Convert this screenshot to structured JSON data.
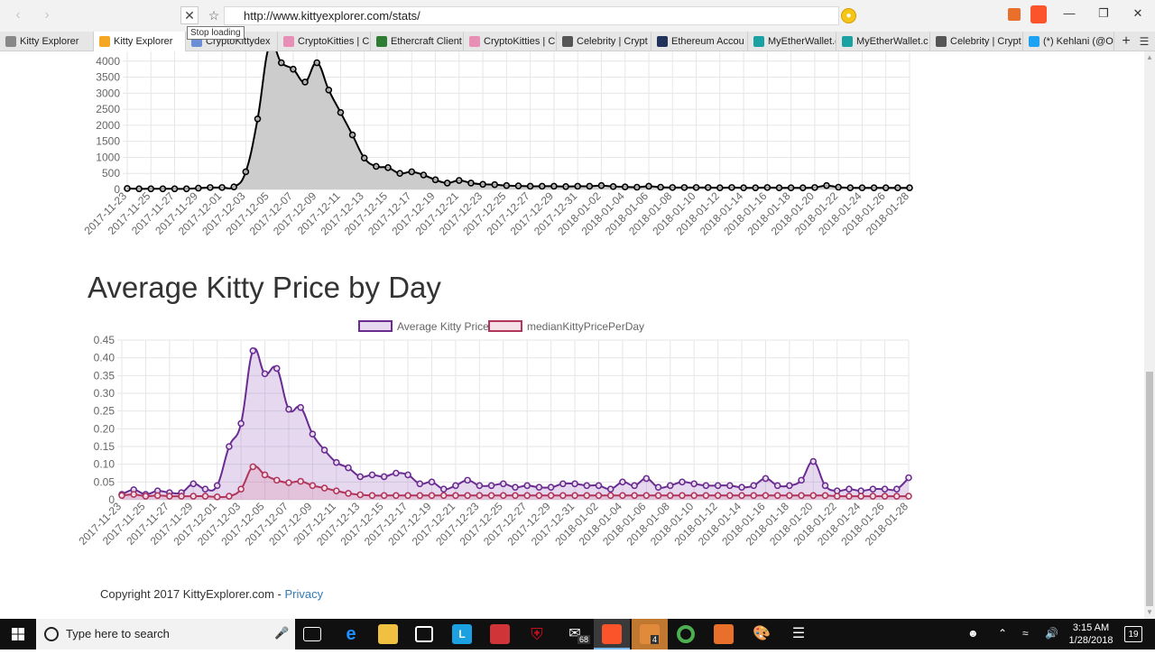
{
  "browser": {
    "url": "http://www.kittyexplorer.com/stats/",
    "tooltip": "Stop loading",
    "tabs": [
      {
        "label": "Kitty Explorer",
        "icon": "page-icon",
        "color": "#888888"
      },
      {
        "label": "Kitty Explorer",
        "icon": "loading-icon",
        "color": "#f5a623",
        "active": true
      },
      {
        "label": "CryptoKittydex",
        "icon": "kittydex-icon",
        "color": "#6b8fd6"
      },
      {
        "label": "CryptoKitties | C",
        "icon": "cryptokitties-icon",
        "color": "#e88fb5"
      },
      {
        "label": "Ethercraft Client",
        "icon": "ethercraft-icon",
        "color": "#2e7d32"
      },
      {
        "label": "CryptoKitties | C",
        "icon": "cryptokitties-icon",
        "color": "#e88fb5"
      },
      {
        "label": "Celebrity | Crypt",
        "icon": "celebrity-icon",
        "color": "#555555"
      },
      {
        "label": "Ethereum Accou",
        "icon": "etherscan-icon",
        "color": "#21325b"
      },
      {
        "label": "MyEtherWallet.c",
        "icon": "myetherwallet-icon",
        "color": "#1aa1a1"
      },
      {
        "label": "MyEtherWallet.c",
        "icon": "myetherwallet-icon",
        "color": "#1aa1a1"
      },
      {
        "label": "Celebrity | Crypt",
        "icon": "celebrity-icon",
        "color": "#555555"
      },
      {
        "label": "(*) Kehlani (@Of",
        "icon": "twitter-icon",
        "color": "#1da1f2"
      }
    ]
  },
  "chart1": {
    "chart_data": {
      "type": "area",
      "x": [
        "2017-11-23",
        "2017-11-24",
        "2017-11-25",
        "2017-11-26",
        "2017-11-27",
        "2017-11-28",
        "2017-11-29",
        "2017-11-30",
        "2017-12-01",
        "2017-12-02",
        "2017-12-03",
        "2017-12-04",
        "2017-12-05",
        "2017-12-06",
        "2017-12-07",
        "2017-12-08",
        "2017-12-09",
        "2017-12-10",
        "2017-12-11",
        "2017-12-12",
        "2017-12-13",
        "2017-12-14",
        "2017-12-15",
        "2017-12-16",
        "2017-12-17",
        "2017-12-18",
        "2017-12-19",
        "2017-12-20",
        "2017-12-21",
        "2017-12-22",
        "2017-12-23",
        "2017-12-24",
        "2017-12-25",
        "2017-12-26",
        "2017-12-27",
        "2017-12-28",
        "2017-12-29",
        "2017-12-30",
        "2017-12-31",
        "2018-01-01",
        "2018-01-02",
        "2018-01-03",
        "2018-01-04",
        "2018-01-05",
        "2018-01-06",
        "2018-01-07",
        "2018-01-08",
        "2018-01-09",
        "2018-01-10",
        "2018-01-11",
        "2018-01-12",
        "2018-01-13",
        "2018-01-14",
        "2018-01-15",
        "2018-01-16",
        "2018-01-17",
        "2018-01-18",
        "2018-01-19",
        "2018-01-20",
        "2018-01-21",
        "2018-01-22",
        "2018-01-23",
        "2018-01-24",
        "2018-01-25",
        "2018-01-26",
        "2018-01-27",
        "2018-01-28"
      ],
      "tick_labels": [
        "2017-11-23",
        "2017-11-25",
        "2017-11-27",
        "2017-11-29",
        "2017-12-01",
        "2017-12-03",
        "2017-12-05",
        "2017-12-07",
        "2017-12-09",
        "2017-12-11",
        "2017-12-13",
        "2017-12-15",
        "2017-12-17",
        "2017-12-19",
        "2017-12-21",
        "2017-12-23",
        "2017-12-25",
        "2017-12-27",
        "2017-12-29",
        "2017-12-31",
        "2018-01-02",
        "2018-01-04",
        "2018-01-06",
        "2018-01-08",
        "2018-01-10",
        "2018-01-12",
        "2018-01-14",
        "2018-01-16",
        "2018-01-18",
        "2018-01-20",
        "2018-01-22",
        "2018-01-24",
        "2018-01-26",
        "2018-01-28"
      ],
      "values": [
        30,
        20,
        20,
        20,
        20,
        20,
        40,
        60,
        60,
        80,
        550,
        2200,
        4500,
        3950,
        3750,
        3350,
        3950,
        3100,
        2400,
        1700,
        980,
        720,
        680,
        500,
        550,
        450,
        300,
        200,
        280,
        200,
        160,
        150,
        120,
        110,
        100,
        100,
        100,
        90,
        100,
        100,
        120,
        90,
        80,
        70,
        100,
        70,
        60,
        60,
        60,
        60,
        50,
        60,
        50,
        50,
        60,
        50,
        50,
        50,
        60,
        120,
        70,
        50,
        50,
        50,
        50,
        50,
        50
      ],
      "yticks": [
        "0",
        "500",
        "1000",
        "1500",
        "2000",
        "2500",
        "3000",
        "3500",
        "4000"
      ],
      "ylim": [
        0,
        4500
      ],
      "line_color": "#000000",
      "fill_color": "#cccccc"
    }
  },
  "chart2": {
    "title": "Average Kitty Price by Day",
    "chart_data": {
      "type": "line",
      "x": [
        "2017-11-23",
        "2017-11-24",
        "2017-11-25",
        "2017-11-26",
        "2017-11-27",
        "2017-11-28",
        "2017-11-29",
        "2017-11-30",
        "2017-12-01",
        "2017-12-02",
        "2017-12-03",
        "2017-12-04",
        "2017-12-05",
        "2017-12-06",
        "2017-12-07",
        "2017-12-08",
        "2017-12-09",
        "2017-12-10",
        "2017-12-11",
        "2017-12-12",
        "2017-12-13",
        "2017-12-14",
        "2017-12-15",
        "2017-12-16",
        "2017-12-17",
        "2017-12-18",
        "2017-12-19",
        "2017-12-20",
        "2017-12-21",
        "2017-12-22",
        "2017-12-23",
        "2017-12-24",
        "2017-12-25",
        "2017-12-26",
        "2017-12-27",
        "2017-12-28",
        "2017-12-29",
        "2017-12-30",
        "2017-12-31",
        "2018-01-01",
        "2018-01-02",
        "2018-01-03",
        "2018-01-04",
        "2018-01-05",
        "2018-01-06",
        "2018-01-07",
        "2018-01-08",
        "2018-01-09",
        "2018-01-10",
        "2018-01-11",
        "2018-01-12",
        "2018-01-13",
        "2018-01-14",
        "2018-01-15",
        "2018-01-16",
        "2018-01-17",
        "2018-01-18",
        "2018-01-19",
        "2018-01-20",
        "2018-01-21",
        "2018-01-22",
        "2018-01-23",
        "2018-01-24",
        "2018-01-25",
        "2018-01-26",
        "2018-01-27",
        "2018-01-28"
      ],
      "tick_labels": [
        "2017-11-23",
        "2017-11-25",
        "2017-11-27",
        "2017-11-29",
        "2017-12-01",
        "2017-12-03",
        "2017-12-05",
        "2017-12-07",
        "2017-12-09",
        "2017-12-11",
        "2017-12-13",
        "2017-12-15",
        "2017-12-17",
        "2017-12-19",
        "2017-12-21",
        "2017-12-23",
        "2017-12-25",
        "2017-12-27",
        "2017-12-29",
        "2017-12-31",
        "2018-01-02",
        "2018-01-04",
        "2018-01-06",
        "2018-01-08",
        "2018-01-10",
        "2018-01-12",
        "2018-01-14",
        "2018-01-16",
        "2018-01-18",
        "2018-01-20",
        "2018-01-22",
        "2018-01-24",
        "2018-01-26",
        "2018-01-28"
      ],
      "series": [
        {
          "name": "Average Kitty Price",
          "color": "#6a2c91",
          "fill": "rgba(152,100,190,0.25)",
          "values": [
            0.015,
            0.028,
            0.015,
            0.025,
            0.02,
            0.02,
            0.045,
            0.03,
            0.04,
            0.15,
            0.215,
            0.42,
            0.355,
            0.37,
            0.255,
            0.26,
            0.185,
            0.14,
            0.105,
            0.09,
            0.065,
            0.07,
            0.065,
            0.075,
            0.07,
            0.045,
            0.05,
            0.03,
            0.04,
            0.055,
            0.04,
            0.04,
            0.045,
            0.035,
            0.04,
            0.035,
            0.035,
            0.045,
            0.045,
            0.04,
            0.04,
            0.03,
            0.05,
            0.04,
            0.06,
            0.035,
            0.04,
            0.05,
            0.045,
            0.04,
            0.04,
            0.04,
            0.035,
            0.04,
            0.06,
            0.04,
            0.04,
            0.055,
            0.108,
            0.04,
            0.025,
            0.03,
            0.025,
            0.03,
            0.03,
            0.03,
            0.062
          ]
        },
        {
          "name": "medianKittyPricePerDay",
          "color": "#b2355b",
          "fill": "rgba(220,130,160,0.25)",
          "values": [
            0.012,
            0.015,
            0.01,
            0.012,
            0.01,
            0.01,
            0.01,
            0.01,
            0.008,
            0.01,
            0.03,
            0.093,
            0.07,
            0.055,
            0.048,
            0.052,
            0.04,
            0.033,
            0.025,
            0.018,
            0.014,
            0.012,
            0.012,
            0.012,
            0.012,
            0.012,
            0.012,
            0.012,
            0.012,
            0.012,
            0.012,
            0.012,
            0.012,
            0.012,
            0.012,
            0.012,
            0.012,
            0.012,
            0.012,
            0.012,
            0.012,
            0.012,
            0.012,
            0.012,
            0.012,
            0.012,
            0.012,
            0.012,
            0.012,
            0.012,
            0.012,
            0.012,
            0.012,
            0.012,
            0.012,
            0.012,
            0.012,
            0.012,
            0.012,
            0.012,
            0.01,
            0.01,
            0.01,
            0.01,
            0.01,
            0.01,
            0.01
          ]
        }
      ],
      "yticks": [
        "0",
        "0.05",
        "0.10",
        "0.15",
        "0.20",
        "0.25",
        "0.30",
        "0.35",
        "0.40",
        "0.45"
      ],
      "ylim": [
        0,
        0.45
      ],
      "legend": "top-center"
    }
  },
  "footer": {
    "copyright": "Copyright 2017 KittyExplorer.com - ",
    "privacy_link": "Privacy"
  },
  "taskbar": {
    "search_placeholder": "Type here to search",
    "clock_time": "3:15 AM",
    "clock_date": "1/28/2018",
    "mail_badge": "68",
    "app_badge": "4",
    "notification_count": "19"
  }
}
